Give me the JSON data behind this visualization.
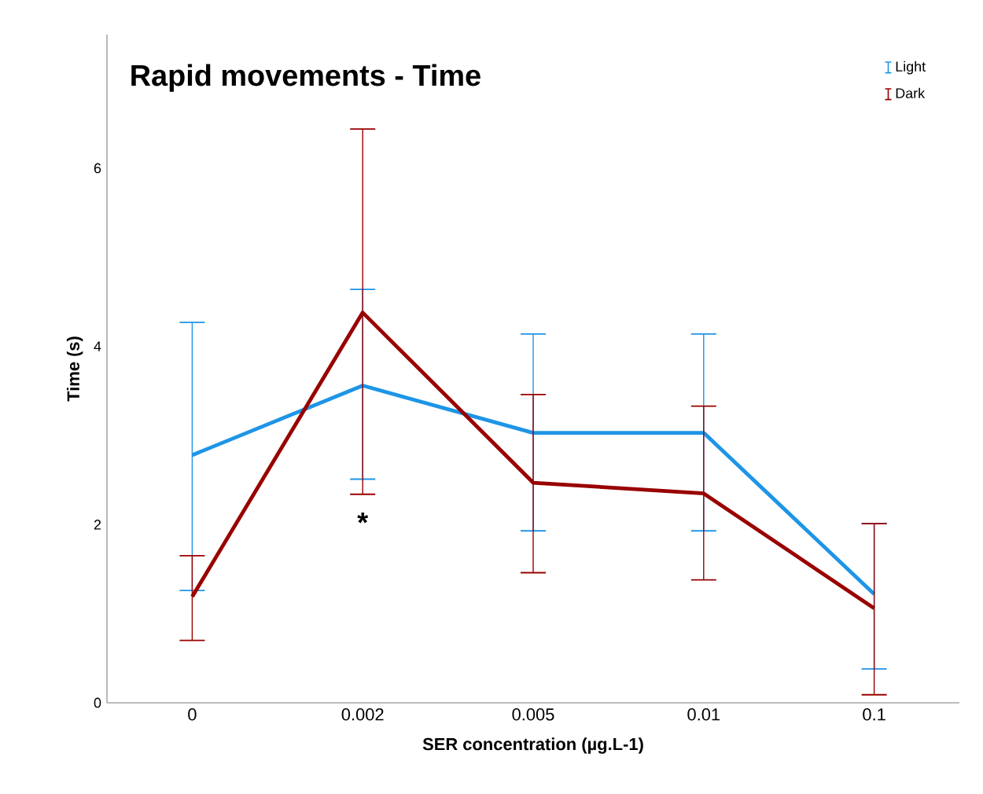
{
  "chart_data": {
    "type": "line",
    "title": "Rapid movements - Time",
    "xlabel": "SER concentration (µg.L-1)",
    "ylabel": "Time (s)",
    "categories": [
      "0",
      "0.002",
      "0.005",
      "0.01",
      "0.1"
    ],
    "series": [
      {
        "name": "Light",
        "color": "#1e95e6",
        "values": [
          2.78,
          3.56,
          3.03,
          3.03,
          1.22
        ],
        "errors": [
          [
            1.26,
            4.27
          ],
          [
            2.51,
            4.64
          ],
          [
            1.93,
            4.14
          ],
          [
            1.93,
            4.14
          ],
          [
            0.38,
            2.01
          ]
        ]
      },
      {
        "name": "Dark",
        "color": "#990000",
        "values": [
          1.19,
          4.38,
          2.47,
          2.35,
          1.06
        ],
        "errors": [
          [
            0.7,
            1.65
          ],
          [
            2.34,
            6.44
          ],
          [
            1.46,
            3.46
          ],
          [
            1.38,
            3.33
          ],
          [
            0.09,
            2.01
          ]
        ]
      }
    ],
    "annotations": [
      "*"
    ],
    "ylim": [
      0,
      7.5
    ],
    "yticks": [
      0,
      2,
      4,
      6
    ],
    "grid": false,
    "legend": "top right",
    "marker": "none",
    "line_style": "solid"
  }
}
